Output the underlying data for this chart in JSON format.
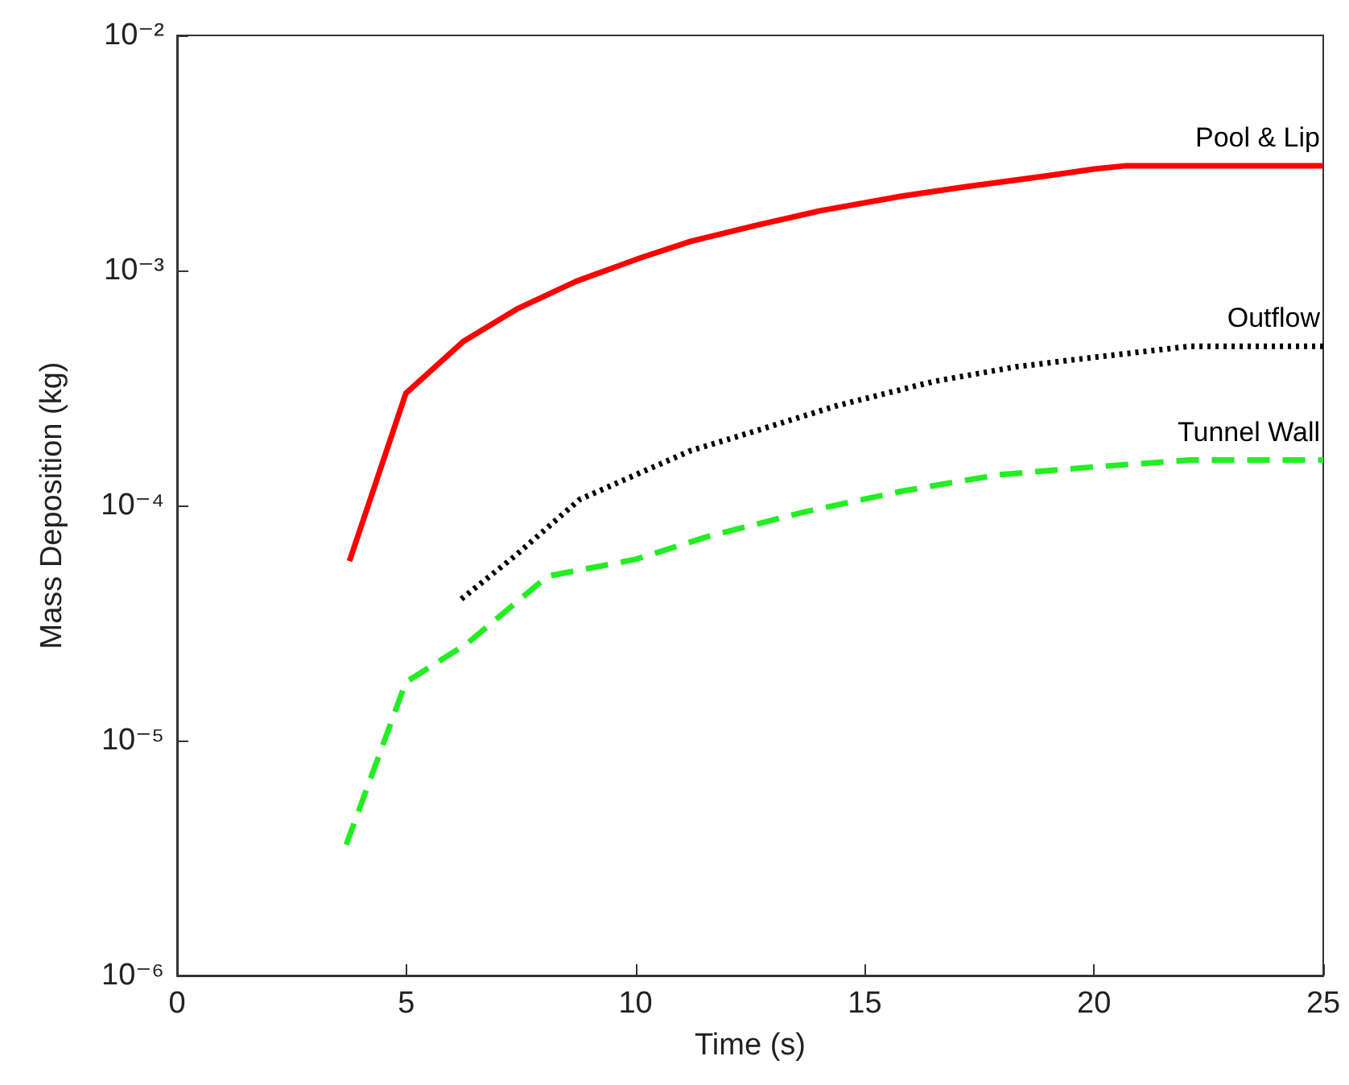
{
  "chart_data": {
    "type": "line",
    "xlabel": "Time (s)",
    "ylabel": "Mass Deposition (kg)",
    "log": "y",
    "grid": false,
    "legend": false,
    "marker": "none",
    "xlim": [
      0,
      25
    ],
    "xticks": [
      0,
      5,
      10,
      15,
      20,
      25
    ],
    "ylim": [
      1e-06,
      0.01
    ],
    "yticks": [
      {
        "value": 1e-06,
        "label": "10⁻⁶"
      },
      {
        "value": 1e-05,
        "label": "10⁻⁵"
      },
      {
        "value": 0.0001,
        "label": "10⁻⁴"
      },
      {
        "value": 0.001,
        "label": "10⁻³"
      },
      {
        "value": 0.01,
        "label": "10⁻²"
      }
    ],
    "series": [
      {
        "name": "Pool & Lip",
        "color": "#ff0000",
        "line_style": "solid",
        "x": [
          3.76,
          4.99,
          6.25,
          7.44,
          8.71,
          10.1,
          11.2,
          12.6,
          14.0,
          15.8,
          17.2,
          19.0,
          20.0,
          20.7,
          25
        ],
        "values": [
          5.8e-05,
          0.0003,
          0.0005,
          0.00069,
          0.0009,
          0.00113,
          0.00133,
          0.00155,
          0.00179,
          0.00207,
          0.00227,
          0.00253,
          0.0027,
          0.00279,
          0.00279
        ]
      },
      {
        "name": "Outflow",
        "color": "#000000",
        "line_style": "dotted",
        "x": [
          6.2,
          7.37,
          8.78,
          10.0,
          11.2,
          12.6,
          14.4,
          16.5,
          18.3,
          20.0,
          22.1,
          25
        ],
        "values": [
          4e-05,
          6.1e-05,
          0.000106,
          0.000135,
          0.000171,
          0.000207,
          0.000266,
          0.000337,
          0.000389,
          0.000427,
          0.000476,
          0.000476
        ]
      },
      {
        "name": "Tunnel Wall",
        "color": "#22ee22",
        "line_style": "dashed",
        "x": [
          3.69,
          4.99,
          6.32,
          8.08,
          10.0,
          11.6,
          13.7,
          15.8,
          17.9,
          20.0,
          22.1,
          25
        ],
        "values": [
          3.6e-06,
          1.77e-05,
          2.58e-05,
          5e-05,
          5.9e-05,
          7.4e-05,
          9.4e-05,
          0.000115,
          0.000135,
          0.000146,
          0.000156,
          0.000156
        ]
      }
    ]
  }
}
